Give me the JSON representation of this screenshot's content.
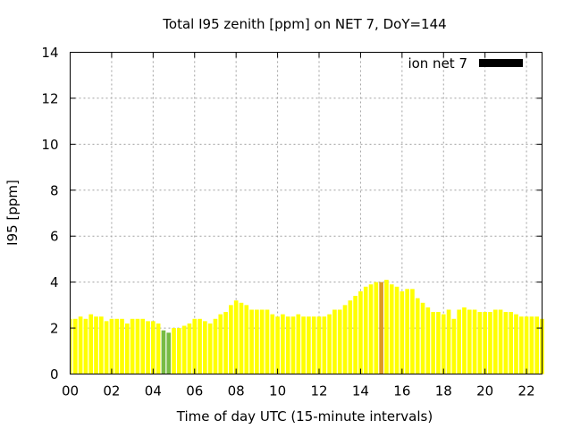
{
  "chart_data": {
    "type": "bar",
    "title": "Total I95 zenith [ppm] on NET 7, DoY=144",
    "xlabel": "Time of day UTC (15-minute intervals)",
    "ylabel": "I95 [ppm]",
    "xlim": [
      0,
      22.75
    ],
    "ylim": [
      0,
      14
    ],
    "xticks": [
      "00",
      "02",
      "04",
      "06",
      "08",
      "10",
      "12",
      "14",
      "16",
      "18",
      "20",
      "22"
    ],
    "yticks": [
      "0",
      "2",
      "4",
      "6",
      "8",
      "10",
      "12",
      "14"
    ],
    "grid": true,
    "legend": {
      "label": "ion net 7",
      "placement": "top-right",
      "color": "#000000"
    },
    "bar_step_hours": 0.25,
    "bar_width_fraction": 0.8,
    "default_color": "#ffff00",
    "highlight_colors": {
      "low": "#77bb44",
      "peak": "#dd9922"
    },
    "values": [
      2.4,
      2.4,
      2.5,
      2.4,
      2.6,
      2.5,
      2.5,
      2.3,
      2.4,
      2.4,
      2.4,
      2.2,
      2.4,
      2.4,
      2.4,
      2.3,
      2.3,
      2.2,
      1.9,
      1.8,
      2.0,
      2.0,
      2.1,
      2.2,
      2.4,
      2.4,
      2.3,
      2.2,
      2.4,
      2.6,
      2.7,
      3.0,
      3.2,
      3.1,
      3.0,
      2.8,
      2.8,
      2.8,
      2.8,
      2.6,
      2.5,
      2.6,
      2.5,
      2.5,
      2.6,
      2.5,
      2.5,
      2.5,
      2.5,
      2.5,
      2.6,
      2.8,
      2.8,
      3.0,
      3.2,
      3.4,
      3.6,
      3.8,
      3.9,
      4.0,
      4.0,
      4.1,
      3.9,
      3.8,
      3.6,
      3.7,
      3.7,
      3.3,
      3.1,
      2.9,
      2.7,
      2.7,
      2.6,
      2.8,
      2.4,
      2.8,
      2.9,
      2.8,
      2.8,
      2.7,
      2.7,
      2.7,
      2.8,
      2.8,
      2.7,
      2.7,
      2.6,
      2.5,
      2.5,
      2.5,
      2.5,
      2.4
    ],
    "bar_colors": {
      "18": "#77bb44",
      "19": "#77bb44",
      "60": "#dd9922"
    }
  }
}
